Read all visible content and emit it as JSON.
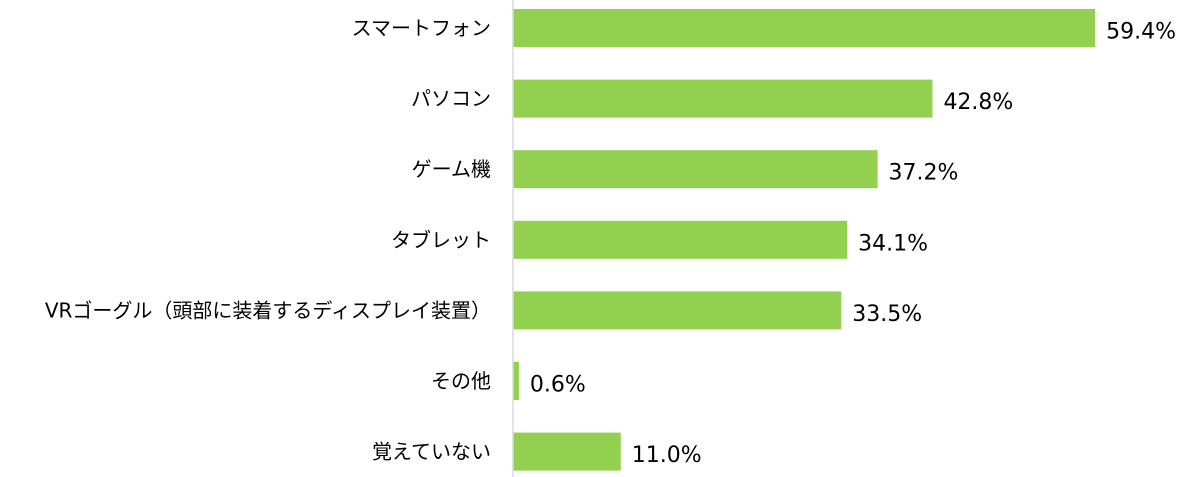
{
  "chart_data": {
    "type": "bar",
    "orientation": "horizontal",
    "categories": [
      "スマートフォン",
      "パソコン",
      "ゲーム機",
      "タブレット",
      "VRゴーグル（頭部に装着するディスプレイ装置）",
      "その他",
      "覚えていない"
    ],
    "values": [
      59.4,
      42.8,
      37.2,
      34.1,
      33.5,
      0.6,
      11.0
    ],
    "value_labels": [
      "59.4%",
      "42.8%",
      "37.2%",
      "34.1%",
      "33.5%",
      "0.6%",
      "11.0%"
    ],
    "unit": "%",
    "xlim": [
      0,
      60
    ],
    "grid": false,
    "legend": "none",
    "bar_color": "#92d050",
    "axis_color": "#d9d9d9"
  }
}
